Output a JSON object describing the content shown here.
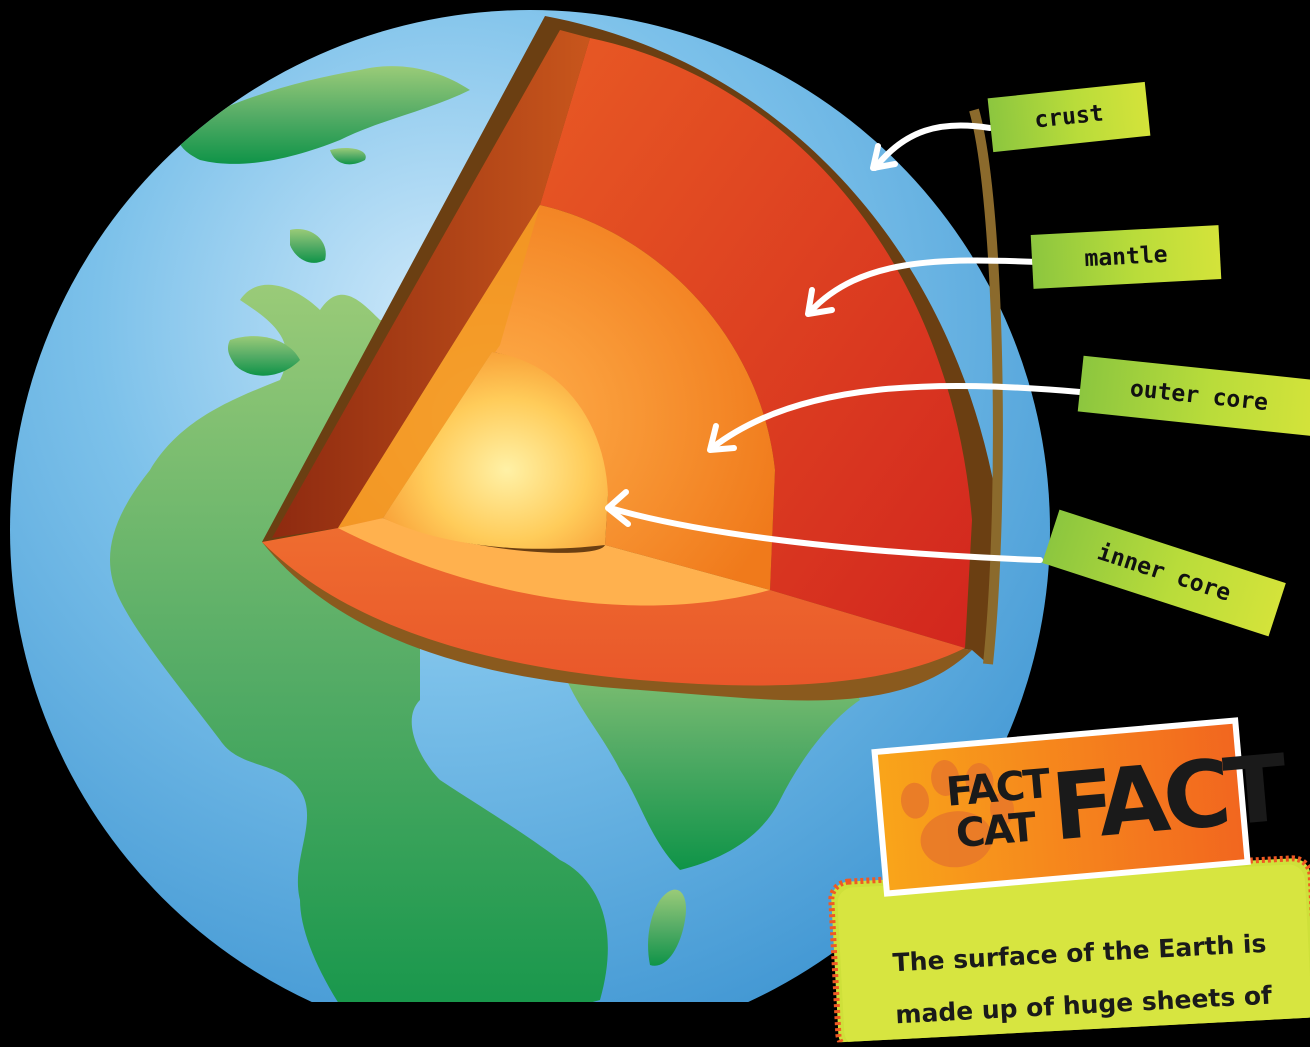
{
  "labels": {
    "crust": "crust",
    "mantle": "mantle",
    "outer_core": "outer core",
    "inner_core": "inner core"
  },
  "fact": {
    "badge_small_top": "FACT",
    "badge_small_bottom": "CAT",
    "badge_big": "FACT",
    "text": "The surface of the Earth is made up of huge sheets of"
  },
  "colors": {
    "ocean": "#5fb3e6",
    "land": "#3aa35a",
    "crust": "#6b3f12",
    "mantle": "#e04a24",
    "outer_core": "#f3861f",
    "inner_core": "#ffd36b",
    "label_green": "#8cc63f",
    "label_yellow": "#d4e33a",
    "badge_orange": "#f47b20"
  }
}
